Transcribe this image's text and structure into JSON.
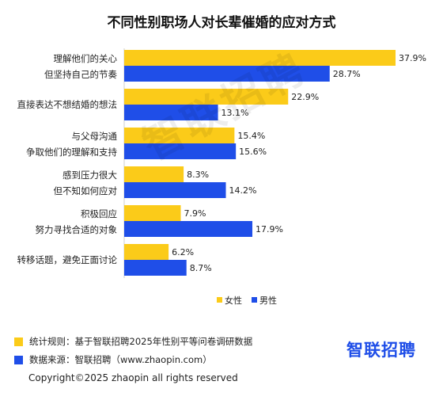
{
  "colors": {
    "female": "#FBCB19",
    "male": "#1F4EE8"
  },
  "chart_data": {
    "type": "bar",
    "orientation": "horizontal",
    "title": "不同性别职场人对长辈催婚的应对方式",
    "categories": [
      [
        "理解他们的关心",
        "但坚持自己的节奏"
      ],
      [
        "直接表达不想结婚的想法"
      ],
      [
        "与父母沟通",
        "争取他们的理解和支持"
      ],
      [
        "感到压力很大",
        "但不知如何应对"
      ],
      [
        "积极回应",
        "努力寻找合适的对象"
      ],
      [
        "转移话题，避免正面讨论"
      ]
    ],
    "series": [
      {
        "name": "女性",
        "values": [
          37.9,
          22.9,
          15.4,
          8.3,
          7.9,
          6.2
        ]
      },
      {
        "name": "男性",
        "values": [
          28.7,
          13.1,
          15.6,
          14.2,
          17.9,
          8.7
        ]
      }
    ],
    "value_suffix": "%",
    "xlim": [
      0,
      37.9
    ],
    "legend_position": "bottom-right",
    "grid": false
  },
  "watermark": "智联招聘",
  "footer": {
    "rule": "统计规则：基于智联招聘2025年性别平等问卷调研数据",
    "source": "数据来源：智联招聘（www.zhaopin.com）",
    "logo": "智联招聘",
    "copyright": "Copyright©2025 zhaopin all rights reserved"
  }
}
